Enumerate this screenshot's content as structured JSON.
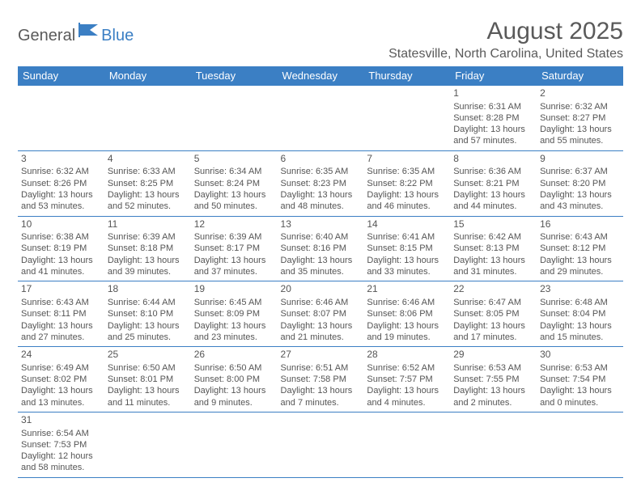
{
  "logo": {
    "text1": "General",
    "text2": "Blue"
  },
  "title": "August 2025",
  "location": "Statesville, North Carolina, United States",
  "colors": {
    "header_bg": "#3b7fc4",
    "header_text": "#ffffff",
    "border": "#3b7fc4",
    "body_text": "#555555",
    "logo_gray": "#5a5a5a",
    "logo_blue": "#3b7fc4",
    "page_bg": "#ffffff"
  },
  "typography": {
    "title_fontsize": 30,
    "location_fontsize": 16,
    "dayheader_fontsize": 13,
    "cell_fontsize": 11
  },
  "day_headers": [
    "Sunday",
    "Monday",
    "Tuesday",
    "Wednesday",
    "Thursday",
    "Friday",
    "Saturday"
  ],
  "weeks": [
    [
      null,
      null,
      null,
      null,
      null,
      {
        "n": "1",
        "sunrise": "6:31 AM",
        "sunset": "8:28 PM",
        "daylight": "13 hours and 57 minutes."
      },
      {
        "n": "2",
        "sunrise": "6:32 AM",
        "sunset": "8:27 PM",
        "daylight": "13 hours and 55 minutes."
      }
    ],
    [
      {
        "n": "3",
        "sunrise": "6:32 AM",
        "sunset": "8:26 PM",
        "daylight": "13 hours and 53 minutes."
      },
      {
        "n": "4",
        "sunrise": "6:33 AM",
        "sunset": "8:25 PM",
        "daylight": "13 hours and 52 minutes."
      },
      {
        "n": "5",
        "sunrise": "6:34 AM",
        "sunset": "8:24 PM",
        "daylight": "13 hours and 50 minutes."
      },
      {
        "n": "6",
        "sunrise": "6:35 AM",
        "sunset": "8:23 PM",
        "daylight": "13 hours and 48 minutes."
      },
      {
        "n": "7",
        "sunrise": "6:35 AM",
        "sunset": "8:22 PM",
        "daylight": "13 hours and 46 minutes."
      },
      {
        "n": "8",
        "sunrise": "6:36 AM",
        "sunset": "8:21 PM",
        "daylight": "13 hours and 44 minutes."
      },
      {
        "n": "9",
        "sunrise": "6:37 AM",
        "sunset": "8:20 PM",
        "daylight": "13 hours and 43 minutes."
      }
    ],
    [
      {
        "n": "10",
        "sunrise": "6:38 AM",
        "sunset": "8:19 PM",
        "daylight": "13 hours and 41 minutes."
      },
      {
        "n": "11",
        "sunrise": "6:39 AM",
        "sunset": "8:18 PM",
        "daylight": "13 hours and 39 minutes."
      },
      {
        "n": "12",
        "sunrise": "6:39 AM",
        "sunset": "8:17 PM",
        "daylight": "13 hours and 37 minutes."
      },
      {
        "n": "13",
        "sunrise": "6:40 AM",
        "sunset": "8:16 PM",
        "daylight": "13 hours and 35 minutes."
      },
      {
        "n": "14",
        "sunrise": "6:41 AM",
        "sunset": "8:15 PM",
        "daylight": "13 hours and 33 minutes."
      },
      {
        "n": "15",
        "sunrise": "6:42 AM",
        "sunset": "8:13 PM",
        "daylight": "13 hours and 31 minutes."
      },
      {
        "n": "16",
        "sunrise": "6:43 AM",
        "sunset": "8:12 PM",
        "daylight": "13 hours and 29 minutes."
      }
    ],
    [
      {
        "n": "17",
        "sunrise": "6:43 AM",
        "sunset": "8:11 PM",
        "daylight": "13 hours and 27 minutes."
      },
      {
        "n": "18",
        "sunrise": "6:44 AM",
        "sunset": "8:10 PM",
        "daylight": "13 hours and 25 minutes."
      },
      {
        "n": "19",
        "sunrise": "6:45 AM",
        "sunset": "8:09 PM",
        "daylight": "13 hours and 23 minutes."
      },
      {
        "n": "20",
        "sunrise": "6:46 AM",
        "sunset": "8:07 PM",
        "daylight": "13 hours and 21 minutes."
      },
      {
        "n": "21",
        "sunrise": "6:46 AM",
        "sunset": "8:06 PM",
        "daylight": "13 hours and 19 minutes."
      },
      {
        "n": "22",
        "sunrise": "6:47 AM",
        "sunset": "8:05 PM",
        "daylight": "13 hours and 17 minutes."
      },
      {
        "n": "23",
        "sunrise": "6:48 AM",
        "sunset": "8:04 PM",
        "daylight": "13 hours and 15 minutes."
      }
    ],
    [
      {
        "n": "24",
        "sunrise": "6:49 AM",
        "sunset": "8:02 PM",
        "daylight": "13 hours and 13 minutes."
      },
      {
        "n": "25",
        "sunrise": "6:50 AM",
        "sunset": "8:01 PM",
        "daylight": "13 hours and 11 minutes."
      },
      {
        "n": "26",
        "sunrise": "6:50 AM",
        "sunset": "8:00 PM",
        "daylight": "13 hours and 9 minutes."
      },
      {
        "n": "27",
        "sunrise": "6:51 AM",
        "sunset": "7:58 PM",
        "daylight": "13 hours and 7 minutes."
      },
      {
        "n": "28",
        "sunrise": "6:52 AM",
        "sunset": "7:57 PM",
        "daylight": "13 hours and 4 minutes."
      },
      {
        "n": "29",
        "sunrise": "6:53 AM",
        "sunset": "7:55 PM",
        "daylight": "13 hours and 2 minutes."
      },
      {
        "n": "30",
        "sunrise": "6:53 AM",
        "sunset": "7:54 PM",
        "daylight": "13 hours and 0 minutes."
      }
    ],
    [
      {
        "n": "31",
        "sunrise": "6:54 AM",
        "sunset": "7:53 PM",
        "daylight": "12 hours and 58 minutes."
      },
      null,
      null,
      null,
      null,
      null,
      null
    ]
  ],
  "labels": {
    "sunrise": "Sunrise:",
    "sunset": "Sunset:",
    "daylight": "Daylight:"
  }
}
